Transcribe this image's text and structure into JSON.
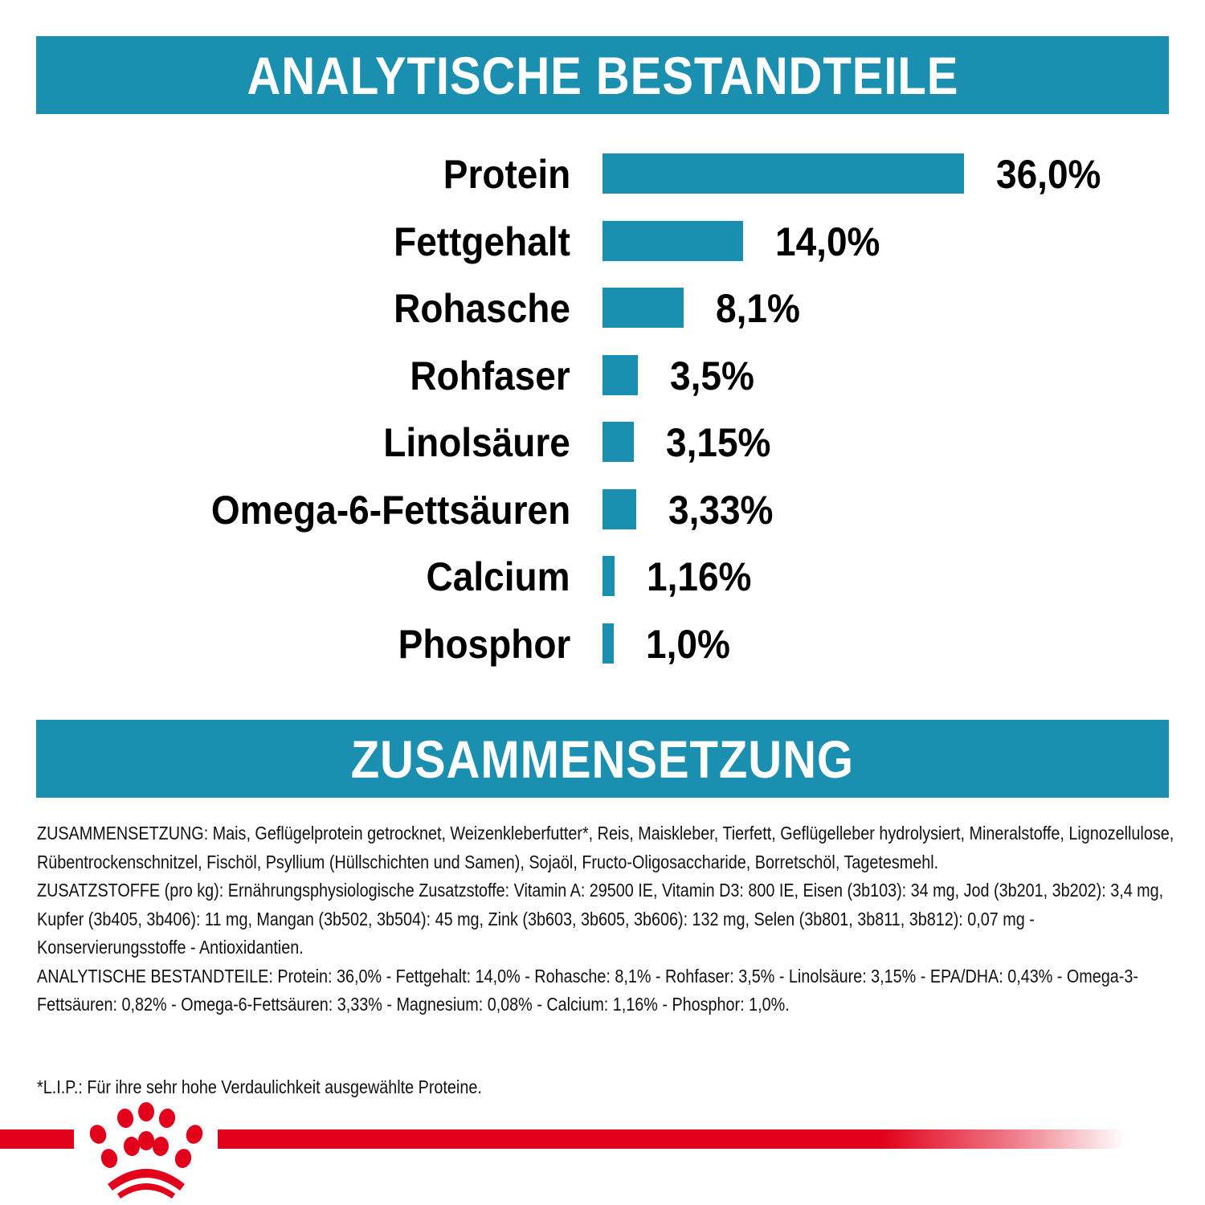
{
  "headers": {
    "analysis_title": "ANALYTISCHE BESTANDTEILE",
    "composition_title": "ZUSAMMENSETZUNG"
  },
  "colors": {
    "accent_blue": "#1a8fb0",
    "brand_red": "#e2001a",
    "text": "#000000"
  },
  "chart_data": {
    "type": "bar",
    "orientation": "horizontal",
    "title": "ANALYTISCHE BESTANDTEILE",
    "xlabel": "",
    "ylabel": "",
    "unit": "%",
    "grid": false,
    "legend": null,
    "categories": [
      "Protein",
      "Fettgehalt",
      "Rohasche",
      "Rohfaser",
      "Linolsäure",
      "Omega-6-Fettsäuren",
      "Calcium",
      "Phosphor"
    ],
    "values": [
      36.0,
      14.0,
      8.1,
      3.5,
      3.15,
      3.33,
      1.16,
      1.0
    ],
    "value_labels": [
      "36,0%",
      "14,0%",
      "8,1%",
      "3,5%",
      "3,15%",
      "3,33%",
      "1,16%",
      "1,0%"
    ]
  },
  "rows": [
    {
      "label": "Protein",
      "value": "36,0%"
    },
    {
      "label": "Fettgehalt",
      "value": "14,0%"
    },
    {
      "label": "Rohasche",
      "value": "8,1%"
    },
    {
      "label": "Rohfaser",
      "value": "3,5%"
    },
    {
      "label": "Linolsäure",
      "value": "3,15%"
    },
    {
      "label": "Omega-6-Fettsäuren",
      "value": "3,33%"
    },
    {
      "label": "Calcium",
      "value": "1,16%"
    },
    {
      "label": "Phosphor",
      "value": "1,0%"
    }
  ],
  "composition": {
    "ingredients": "ZUSAMMENSETZUNG: Mais, Geflügelprotein getrocknet, Weizenkleberfutter*, Reis, Maiskleber, Tierfett, Geflügelleber hydrolysiert, Mineralstoffe, Lignozellulose, Rübentrockenschnitzel, Fischöl, Psyllium (Hüllschichten und Samen), Sojaöl, Fructo-Oligosaccharide, Borretschöl, Tagetesmehl.",
    "additives": "ZUSATZSTOFFE (pro kg): Ernährungsphysiologische Zusatzstoffe: Vitamin A: 29500 IE, Vitamin D3: 800 IE, Eisen (3b103): 34 mg, Jod (3b201, 3b202): 3,4 mg, Kupfer (3b405, 3b406): 11 mg, Mangan (3b502, 3b504): 45 mg, Zink (3b603, 3b605, 3b606): 132 mg, Selen (3b801, 3b811, 3b812): 0,07 mg - Konservierungsstoffe - Antioxidantien.",
    "analysis": "ANALYTISCHE BESTANDTEILE: Protein: 36,0% - Fettgehalt: 14,0% - Rohasche: 8,1% - Rohfaser: 3,5% - Linolsäure: 3,15% - EPA/DHA: 0,43% - Omega-3-Fettsäuren: 0,82% - Omega-6-Fettsäuren: 3,33% - Magnesium: 0,08% - Calcium: 1,16% - Phosphor: 1,0%.",
    "footnote": "*L.I.P.: Für ihre sehr hohe Verdaulichkeit ausgewählte Proteine."
  },
  "brand": {
    "logo_icon": "crown-icon"
  }
}
